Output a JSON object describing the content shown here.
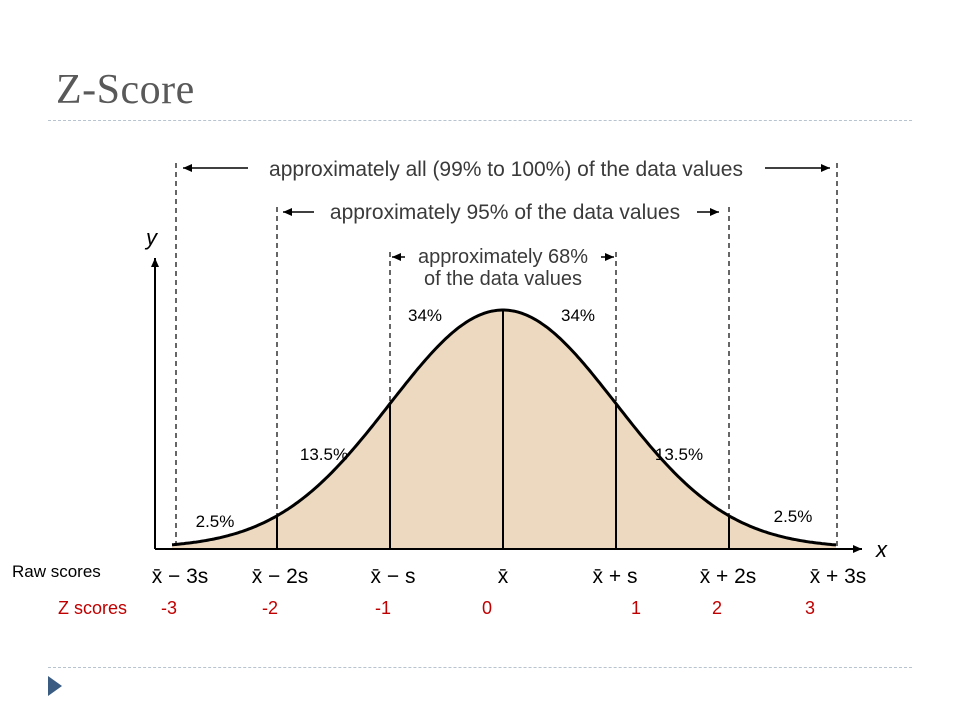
{
  "slide": {
    "title": "Z-Score"
  },
  "figure": {
    "axis_y": "y",
    "axis_x": "x",
    "bands": {
      "all": "approximately all (99% to 100%) of the data values",
      "p95": "approximately 95% of the data values",
      "p68_line1": "approximately 68%",
      "p68_line2": "of the data values"
    },
    "percent_labels": {
      "left_34": "34%",
      "right_34": "34%",
      "left_13": "13.5%",
      "right_13": "13.5%",
      "left_2": "2.5%",
      "right_2": "2.5%"
    },
    "raw_label": "Raw scores",
    "raw_ticks": [
      "x̄ − 3s",
      "x̄ − 2s",
      "x̄ − s",
      "x̄",
      "x̄ + s",
      "x̄ + 2s",
      "x̄ + 3s"
    ],
    "z_label": "Z scores",
    "z_ticks": [
      "-3",
      "-2",
      "-1",
      "0",
      "1",
      "2",
      "3"
    ],
    "colors": {
      "curve_fill": "#ecd9c0",
      "z_text": "#c00000",
      "accent": "#3b5c82"
    }
  }
}
